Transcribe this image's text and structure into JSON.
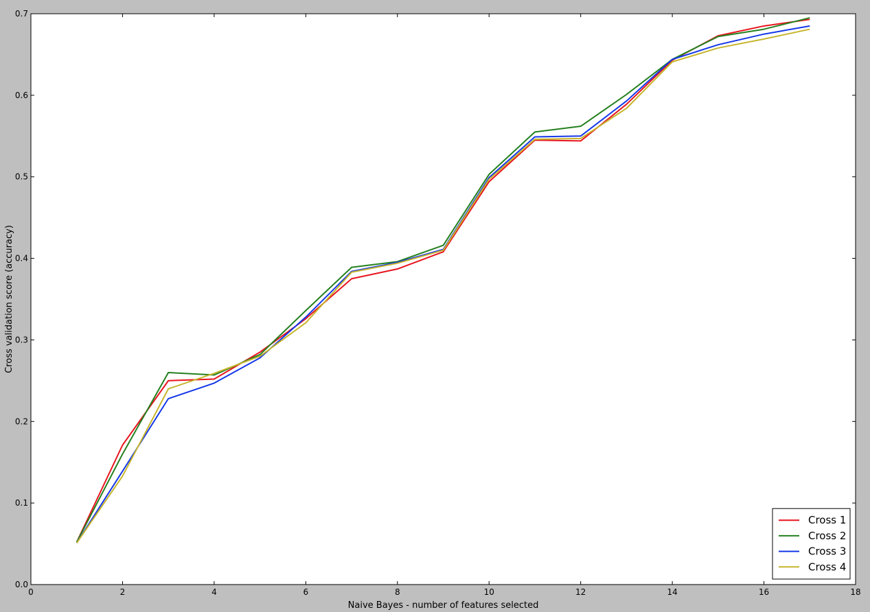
{
  "chart_data": {
    "type": "line",
    "title": "",
    "xlabel": "Naive Bayes - number of features selected",
    "ylabel": "Cross validation score (accuracy)",
    "xlim": [
      0,
      18
    ],
    "ylim": [
      0.0,
      0.7
    ],
    "xticks": [
      0,
      2,
      4,
      6,
      8,
      10,
      12,
      14,
      16,
      18
    ],
    "xtick_labels": [
      "0",
      "2",
      "4",
      "6",
      "8",
      "10",
      "12",
      "14",
      "16",
      "18"
    ],
    "yticks": [
      0.0,
      0.1,
      0.2,
      0.3,
      0.4,
      0.5,
      0.6,
      0.7
    ],
    "ytick_labels": [
      "0.0",
      "0.1",
      "0.2",
      "0.3",
      "0.4",
      "0.5",
      "0.6",
      "0.7"
    ],
    "grid": false,
    "legend_position": "bottom-right",
    "x": [
      1,
      2,
      3,
      4,
      5,
      6,
      7,
      8,
      9,
      10,
      11,
      12,
      13,
      14,
      15,
      16,
      17
    ],
    "series": [
      {
        "name": "Cross 1",
        "color": "#e8141e",
        "values": [
          0.052,
          0.171,
          0.25,
          0.252,
          0.285,
          0.326,
          0.375,
          0.387,
          0.408,
          0.494,
          0.545,
          0.544,
          0.589,
          0.643,
          0.673,
          0.685,
          0.693
        ]
      },
      {
        "name": "Cross 2",
        "color": "#24801f",
        "values": [
          0.052,
          0.16,
          0.26,
          0.257,
          0.282,
          0.336,
          0.389,
          0.396,
          0.416,
          0.503,
          0.555,
          0.562,
          0.601,
          0.644,
          0.672,
          0.681,
          0.695
        ]
      },
      {
        "name": "Cross 3",
        "color": "#1437e8",
        "values": [
          0.051,
          0.139,
          0.228,
          0.247,
          0.278,
          0.328,
          0.384,
          0.395,
          0.411,
          0.499,
          0.549,
          0.55,
          0.593,
          0.644,
          0.662,
          0.675,
          0.685
        ]
      },
      {
        "name": "Cross 4",
        "color": "#c6b52d",
        "values": [
          0.051,
          0.133,
          0.24,
          0.259,
          0.28,
          0.321,
          0.383,
          0.394,
          0.41,
          0.497,
          0.546,
          0.547,
          0.584,
          0.641,
          0.658,
          0.669,
          0.681
        ]
      }
    ]
  }
}
